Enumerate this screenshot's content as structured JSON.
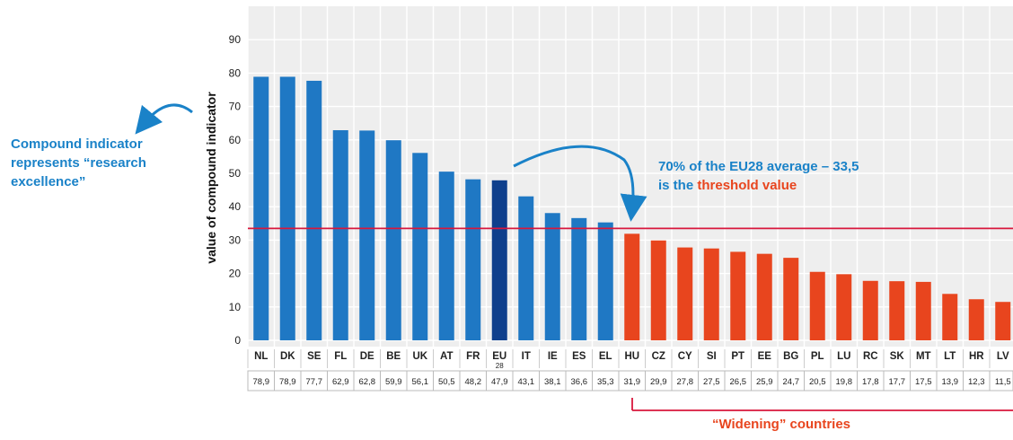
{
  "colors": {
    "above_threshold": "#1f78c4",
    "eu_average": "#0f3f8c",
    "widening": "#e8451e",
    "threshold_line": "#d8173c",
    "annotation_blue": "#1a82c8",
    "annotation_red": "#e8451e",
    "plot_background": "#eeeeee",
    "grid": "#ffffff"
  },
  "annotations": {
    "left_note": "Compound indicator represents “research excellence”",
    "threshold_prefix": "70% of the EU28 average – 33,5",
    "threshold_mid": "is the ",
    "threshold_highlight": "threshold value",
    "widening_label": "“Widening” countries"
  },
  "chart_data": {
    "type": "bar",
    "ylabel": "value of compound indicator",
    "ylim": [
      0,
      95
    ],
    "yticks": [
      0,
      10,
      20,
      30,
      40,
      50,
      60,
      70,
      80,
      90
    ],
    "grid": true,
    "threshold": 33.5,
    "categories": [
      "NL",
      "DK",
      "SE",
      "FL",
      "DE",
      "BE",
      "UK",
      "AT",
      "FR",
      "EU",
      "IT",
      "IE",
      "ES",
      "EL",
      "HU",
      "CZ",
      "CY",
      "SI",
      "PT",
      "EE",
      "BG",
      "PL",
      "LU",
      "RC",
      "SK",
      "MT",
      "LT",
      "HR",
      "LV"
    ],
    "category_sub": {
      "EU": "28"
    },
    "value_labels": [
      "78,9",
      "78,9",
      "77,7",
      "62,9",
      "62,8",
      "59,9",
      "56,1",
      "50,5",
      "48,2",
      "47,9",
      "43,1",
      "38,1",
      "36,6",
      "35,3",
      "31,9",
      "29,9",
      "27,8",
      "27,5",
      "26,5",
      "25,9",
      "24,7",
      "20,5",
      "19,8",
      "17,8",
      "17,7",
      "17,5",
      "13,9",
      "12,3",
      "11,5"
    ],
    "values": [
      78.9,
      78.9,
      77.7,
      62.9,
      62.8,
      59.9,
      56.1,
      50.5,
      48.2,
      47.9,
      43.1,
      38.1,
      36.6,
      35.3,
      31.9,
      29.9,
      27.8,
      27.5,
      26.5,
      25.9,
      24.7,
      20.5,
      19.8,
      17.8,
      17.7,
      17.5,
      13.9,
      12.3,
      11.5
    ]
  }
}
